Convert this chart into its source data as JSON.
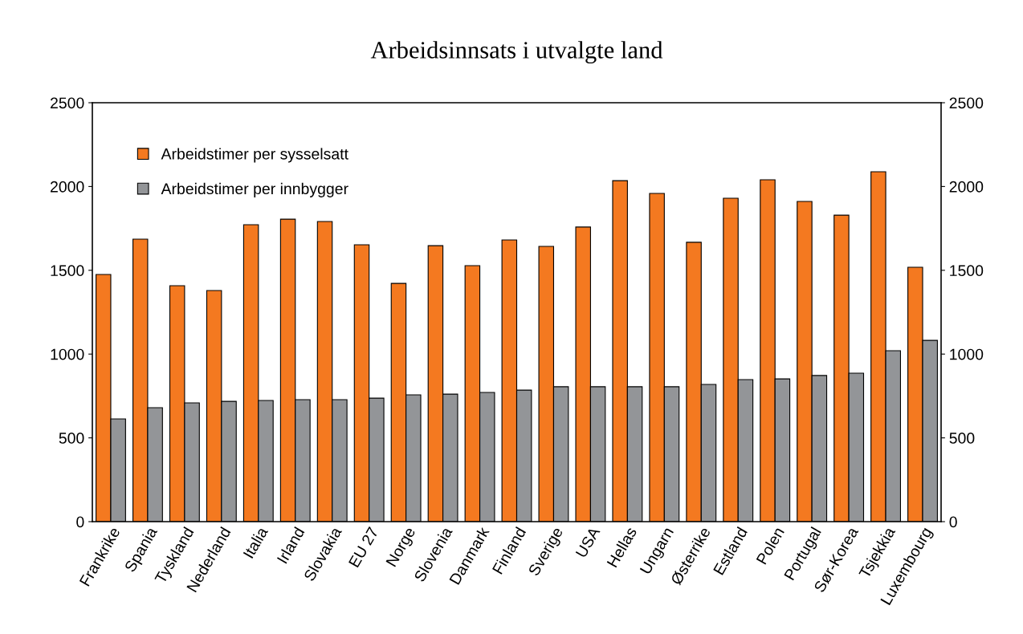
{
  "chart_data": {
    "type": "bar",
    "title": "Arbeidsinnsats i utvalgte land",
    "categories": [
      "Frankrike",
      "Spania",
      "Tyskland",
      "Nederland",
      "Italia",
      "Irland",
      "Slovakia",
      "EU 27",
      "Norge",
      "Slovenia",
      "Danmark",
      "Finland",
      "Sverige",
      "USA",
      "Hellas",
      "Ungarn",
      "Østerrike",
      "Estland",
      "Polen",
      "Portugal",
      "Sør-Korea",
      "Tsjekkia",
      "Luxembourg"
    ],
    "series": [
      {
        "name": "Arbeidstimer per sysselsatt",
        "color": "#f47920",
        "values": [
          1475,
          1686,
          1408,
          1379,
          1772,
          1805,
          1791,
          1652,
          1422,
          1647,
          1528,
          1681,
          1643,
          1758,
          2035,
          1959,
          1667,
          1930,
          2040,
          1911,
          1829,
          2088,
          1518
        ]
      },
      {
        "name": "Arbeidstimer per innbygger",
        "color": "#939598",
        "values": [
          613,
          680,
          709,
          718,
          723,
          728,
          728,
          737,
          757,
          761,
          771,
          785,
          805,
          805,
          805,
          805,
          819,
          848,
          852,
          872,
          886,
          1020,
          1082
        ]
      }
    ],
    "ylim": [
      0,
      2500
    ],
    "yticks": [
      0,
      500,
      1000,
      1500,
      2000,
      2500
    ],
    "y2lim": [
      0,
      2500
    ],
    "y2ticks": [
      0,
      500,
      1000,
      1500,
      2000,
      2500
    ],
    "legend": "top left",
    "grid": false
  }
}
